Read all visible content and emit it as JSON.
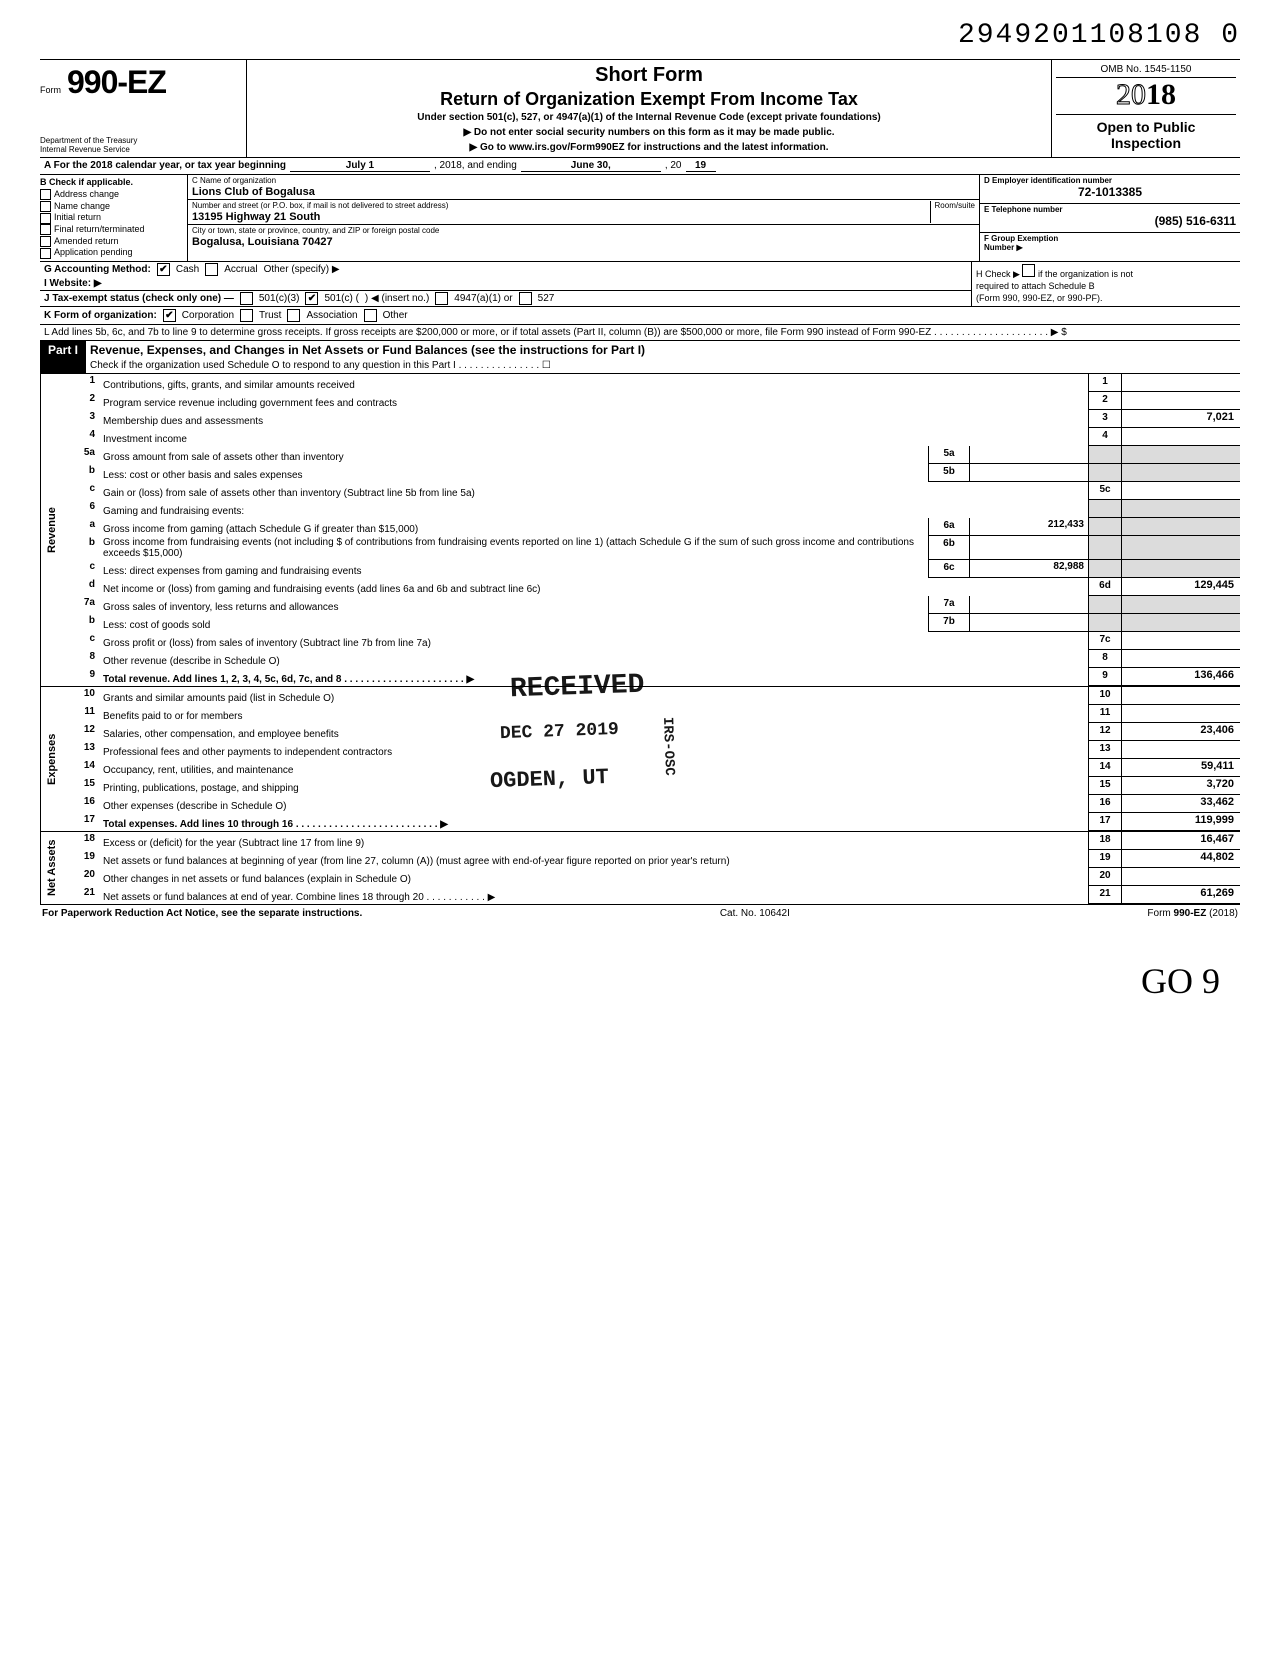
{
  "doc_number": "2949201108108 0",
  "form": {
    "prefix": "Form",
    "number": "990-EZ",
    "dept": "Department of the Treasury\nInternal Revenue Service",
    "short_form": "Short Form",
    "title": "Return of Organization Exempt From Income Tax",
    "subtitle": "Under section 501(c), 527, or 4947(a)(1) of the Internal Revenue Code (except private foundations)",
    "arrow1": "▶ Do not enter social security numbers on this form as it may be made public.",
    "arrow2": "▶ Go to www.irs.gov/Form990EZ for instructions and the latest information.",
    "omb": "OMB No. 1545-1150",
    "year_outline": "20",
    "year_bold": "18",
    "open1": "Open to Public",
    "open2": "Inspection"
  },
  "row_a": {
    "prefix": "A For the 2018 calendar year, or tax year beginning",
    "begin": "July 1",
    "mid": ", 2018, and ending",
    "end": "June 30,",
    "suffix": ", 20",
    "yy": "19"
  },
  "col_b": {
    "header": "B Check if applicable.",
    "items": [
      "Address change",
      "Name change",
      "Initial return",
      "Final return/terminated",
      "Amended return",
      "Application pending"
    ]
  },
  "col_c": {
    "c_label": "C Name of organization",
    "c_value": "Lions Club of Bogalusa",
    "street_label": "Number and street (or P.O. box, if mail is not delivered to street address)",
    "room_label": "Room/suite",
    "street_value": "13195 Highway 21 South",
    "city_label": "City or town, state or province, country, and ZIP or foreign postal code",
    "city_value": "Bogalusa, Louisiana  70427"
  },
  "col_de": {
    "d_label": "D Employer identification number",
    "d_value": "72-1013385",
    "e_label": "E Telephone number",
    "e_value": "(985) 516-6311",
    "f_label": "F Group Exemption",
    "f_label2": "Number ▶"
  },
  "row_g": {
    "g": "G  Accounting Method:",
    "cash": "Cash",
    "accrual": "Accrual",
    "other": "Other (specify) ▶",
    "cash_checked": "✔"
  },
  "row_i": {
    "label": "I  Website: ▶"
  },
  "row_j": {
    "label": "J  Tax-exempt status (check only one) —",
    "c3": "501(c)(3)",
    "c": "501(c) (",
    "c_checked": "✔",
    "insert": ")  ◀ (insert no.)",
    "a1": "4947(a)(1) or",
    "s527": "527"
  },
  "col_h": {
    "line1": "H  Check ▶",
    "line1b": "if the organization is not",
    "line2": "required to attach Schedule B",
    "line3": "(Form 990, 990-EZ, or 990-PF)."
  },
  "row_k": {
    "label": "K  Form of organization:",
    "corp": "Corporation",
    "corp_checked": "✔",
    "trust": "Trust",
    "assoc": "Association",
    "other": "Other"
  },
  "row_l": "L  Add lines 5b, 6c, and 7b to line 9 to determine gross receipts. If gross receipts are $200,000 or more, or if total assets (Part II, column (B)) are $500,000 or more, file Form 990 instead of Form 990-EZ  .  .  .  .  .  .  .  .  .  .  .  .  .  .  .  .  .  .  .  .  .   ▶   $",
  "part1": {
    "badge": "Part I",
    "title": "Revenue, Expenses, and Changes in Net Assets or Fund Balances (see the instructions for Part I)",
    "sub": "Check if the organization used Schedule O to respond to any question in this Part I  .  .  .  .  .  .  .  .  .  .  .  .  .  .  .  ☐"
  },
  "side_labels": {
    "revenue": "Revenue",
    "expenses": "Expenses",
    "netassets": "Net Assets"
  },
  "lines": {
    "l1": {
      "n": "1",
      "d": "Contributions, gifts, grants, and similar amounts received",
      "end": "1",
      "val": ""
    },
    "l2": {
      "n": "2",
      "d": "Program service revenue including government fees and contracts",
      "end": "2",
      "val": ""
    },
    "l3": {
      "n": "3",
      "d": "Membership dues and assessments",
      "end": "3",
      "val": "7,021"
    },
    "l4": {
      "n": "4",
      "d": "Investment income",
      "end": "4",
      "val": ""
    },
    "l5a": {
      "n": "5a",
      "d": "Gross amount from sale of assets other than inventory",
      "mid": "5a",
      "mval": ""
    },
    "l5b": {
      "n": "b",
      "d": "Less: cost or other basis and sales expenses",
      "mid": "5b",
      "mval": ""
    },
    "l5c": {
      "n": "c",
      "d": "Gain or (loss) from sale of assets other than inventory (Subtract line 5b from line 5a)",
      "end": "5c",
      "val": ""
    },
    "l6": {
      "n": "6",
      "d": "Gaming and fundraising events:"
    },
    "l6a": {
      "n": "a",
      "d": "Gross income from gaming (attach Schedule G if greater than $15,000)",
      "mid": "6a",
      "mval": "212,433"
    },
    "l6b": {
      "n": "b",
      "d": "Gross income from fundraising events (not including  $                           of contributions from fundraising events reported on line 1) (attach Schedule G if the sum of such gross income and contributions exceeds $15,000)",
      "mid": "6b",
      "mval": ""
    },
    "l6c": {
      "n": "c",
      "d": "Less: direct expenses from gaming and fundraising events",
      "mid": "6c",
      "mval": "82,988"
    },
    "l6d": {
      "n": "d",
      "d": "Net income or (loss) from gaming and fundraising events (add lines 6a and 6b and subtract line 6c)",
      "end": "6d",
      "val": "129,445"
    },
    "l7a": {
      "n": "7a",
      "d": "Gross sales of inventory, less returns and allowances",
      "mid": "7a",
      "mval": ""
    },
    "l7b": {
      "n": "b",
      "d": "Less: cost of goods sold",
      "mid": "7b",
      "mval": ""
    },
    "l7c": {
      "n": "c",
      "d": "Gross profit or (loss) from sales of inventory (Subtract line 7b from line 7a)",
      "end": "7c",
      "val": ""
    },
    "l8": {
      "n": "8",
      "d": "Other revenue (describe in Schedule O)",
      "end": "8",
      "val": ""
    },
    "l9": {
      "n": "9",
      "d": "Total revenue. Add lines 1, 2, 3, 4, 5c, 6d, 7c, and 8   .  .  .  .  .  .  .  .  .  .  .  .  .  .  .  .  .  .  .  .  .  .  ▶",
      "end": "9",
      "val": "136,466"
    },
    "l10": {
      "n": "10",
      "d": "Grants and similar amounts paid (list in Schedule O)",
      "end": "10",
      "val": ""
    },
    "l11": {
      "n": "11",
      "d": "Benefits paid to or for members",
      "end": "11",
      "val": ""
    },
    "l12": {
      "n": "12",
      "d": "Salaries, other compensation, and employee benefits",
      "end": "12",
      "val": "23,406"
    },
    "l13": {
      "n": "13",
      "d": "Professional fees and other payments to independent contractors",
      "end": "13",
      "val": ""
    },
    "l14": {
      "n": "14",
      "d": "Occupancy, rent, utilities, and maintenance",
      "end": "14",
      "val": "59,411"
    },
    "l15": {
      "n": "15",
      "d": "Printing, publications, postage, and shipping",
      "end": "15",
      "val": "3,720"
    },
    "l16": {
      "n": "16",
      "d": "Other expenses (describe in Schedule O)",
      "end": "16",
      "val": "33,462"
    },
    "l17": {
      "n": "17",
      "d": "Total expenses. Add lines 10 through 16  .  .  .  .  .  .  .  .  .  .  .  .  .  .  .  .  .  .  .  .  .  .  .  .  .  .  ▶",
      "end": "17",
      "val": "119,999"
    },
    "l18": {
      "n": "18",
      "d": "Excess or (deficit) for the year (Subtract line 17 from line 9)",
      "end": "18",
      "val": "16,467"
    },
    "l19": {
      "n": "19",
      "d": "Net assets or fund balances at beginning of year (from line 27, column (A)) (must agree with end-of-year figure reported on prior year's return)",
      "end": "19",
      "val": "44,802"
    },
    "l20": {
      "n": "20",
      "d": "Other changes in net assets or fund balances (explain in Schedule O)",
      "end": "20",
      "val": ""
    },
    "l21": {
      "n": "21",
      "d": "Net assets or fund balances at end of year. Combine lines 18 through 20  .  .  .  .  .  .  .  .  .  .  .  ▶",
      "end": "21",
      "val": "61,269"
    }
  },
  "footer": {
    "left": "For Paperwork Reduction Act Notice, see the separate instructions.",
    "mid": "Cat. No. 10642I",
    "right_pre": "Form ",
    "right_bold": "990-EZ",
    "right_post": " (2018)"
  },
  "stamps": {
    "received": "RECEIVED",
    "date": "DEC 27 2019",
    "ogden": "OGDEN, UT",
    "irs": "IRS-OSC"
  },
  "handwritten": {
    "bottom": "GO   9"
  }
}
